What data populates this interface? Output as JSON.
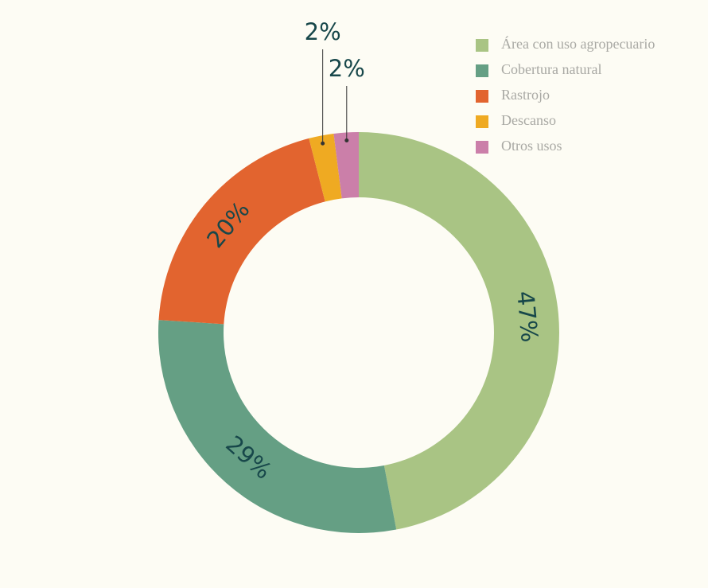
{
  "chart_data": {
    "type": "donut",
    "categories": [
      "Área con uso agropecuario",
      "Cobertura natural",
      "Rastrojo",
      "Descanso",
      "Otros usos"
    ],
    "values": [
      47,
      29,
      20,
      2,
      2
    ],
    "value_labels": [
      "47%",
      "29%",
      "20%",
      "2%",
      "2%"
    ],
    "colors": [
      "#a9c484",
      "#659f84",
      "#e2642f",
      "#efaa22",
      "#cb7fa9"
    ],
    "legend": "top-right"
  }
}
